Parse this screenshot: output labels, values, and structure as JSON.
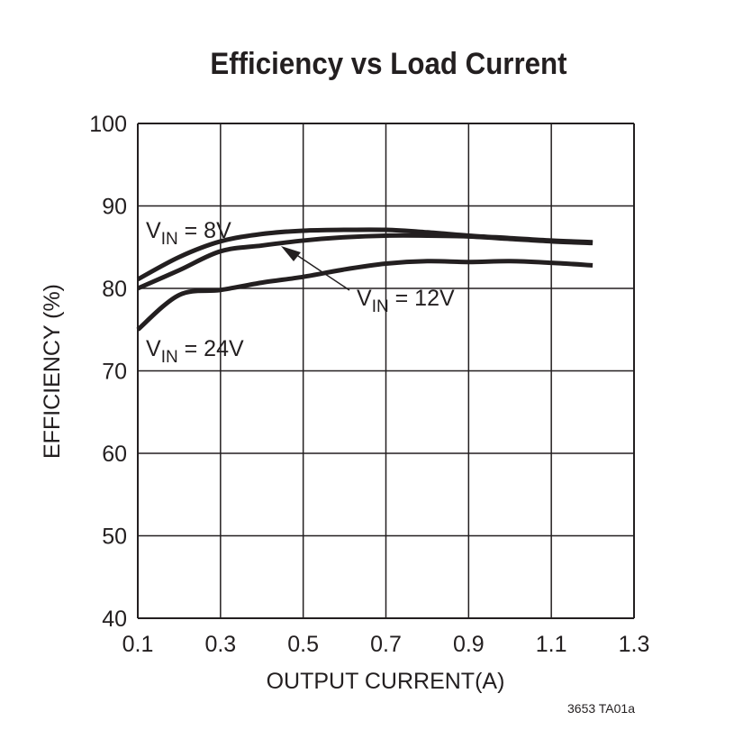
{
  "chart_data": {
    "type": "line",
    "title": "Efficiency vs Load Current",
    "xlabel": "OUTPUT CURRENT(A)",
    "ylabel": "EFFICIENCY (%)",
    "xlim": [
      0.1,
      1.3
    ],
    "ylim": [
      40,
      100
    ],
    "xticks": [
      "0.1",
      "0.3",
      "0.5",
      "0.7",
      "0.9",
      "1.1",
      "1.3"
    ],
    "yticks": [
      "40",
      "50",
      "60",
      "70",
      "80",
      "90",
      "100"
    ],
    "grid": true,
    "series": [
      {
        "name": "VIN = 8V",
        "label_main": "V",
        "label_sub": "IN",
        "label_rest": " = 8V",
        "x": [
          0.1,
          0.2,
          0.3,
          0.4,
          0.5,
          0.6,
          0.7,
          0.8,
          0.9,
          1.0,
          1.1,
          1.2
        ],
        "y": [
          81.1,
          83.8,
          85.7,
          86.6,
          87.0,
          87.1,
          87.1,
          86.8,
          86.4,
          86.1,
          85.8,
          85.6
        ]
      },
      {
        "name": "VIN = 12V",
        "label_main": "V",
        "label_sub": "IN",
        "label_rest": " = 12V",
        "x": [
          0.1,
          0.2,
          0.3,
          0.4,
          0.5,
          0.6,
          0.7,
          0.8,
          0.9,
          1.0,
          1.1,
          1.2
        ],
        "y": [
          80.0,
          82.2,
          84.5,
          85.2,
          85.8,
          86.2,
          86.4,
          86.4,
          86.3,
          86.0,
          85.7,
          85.5
        ]
      },
      {
        "name": "VIN = 24V",
        "label_main": "V",
        "label_sub": "IN",
        "label_rest": " = 24V",
        "x": [
          0.1,
          0.2,
          0.3,
          0.4,
          0.5,
          0.6,
          0.7,
          0.8,
          0.9,
          1.0,
          1.1,
          1.2
        ],
        "y": [
          75.0,
          79.2,
          79.8,
          80.7,
          81.4,
          82.3,
          83.0,
          83.3,
          83.2,
          83.3,
          83.1,
          82.8
        ]
      }
    ],
    "footnote": "3653 TA01a"
  },
  "colors": {
    "ink": "#231f20",
    "background": "#ffffff"
  }
}
